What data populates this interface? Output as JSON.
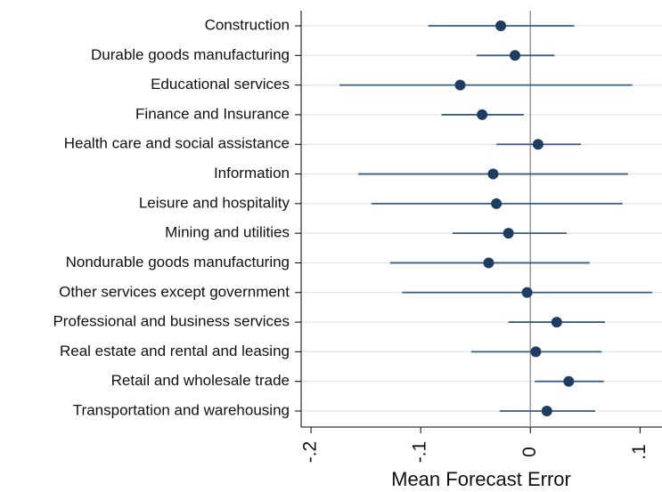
{
  "chart_data": {
    "type": "dot-errorbar",
    "xlabel": "Mean Forecast Error",
    "categories": [
      "Construction",
      "Durable goods manufacturing",
      "Educational services",
      "Finance and Insurance",
      "Health care and social assistance",
      "Information",
      "Leisure and hospitality",
      "Mining and utilities",
      "Nondurable goods manufacturing",
      "Other services except government",
      "Professional and business services",
      "Real estate and rental and leasing",
      "Retail and wholesale trade",
      "Transportation and warehousing"
    ],
    "series": [
      {
        "color": "#1f3d63",
        "bar_color": "#3b5b82",
        "values": [
          -0.027,
          -0.014,
          -0.064,
          -0.044,
          0.007,
          -0.034,
          -0.031,
          -0.02,
          -0.038,
          -0.003,
          0.024,
          0.005,
          0.035,
          0.015
        ],
        "lower": [
          -0.093,
          -0.049,
          -0.174,
          -0.081,
          -0.031,
          -0.157,
          -0.145,
          -0.071,
          -0.128,
          -0.117,
          -0.02,
          -0.054,
          0.004,
          -0.028
        ],
        "upper": [
          0.04,
          0.022,
          0.093,
          -0.006,
          0.046,
          0.089,
          0.084,
          0.033,
          0.054,
          0.111,
          0.068,
          0.065,
          0.067,
          0.059
        ]
      }
    ],
    "xlim": [
      -0.209,
      0.12
    ],
    "xticks": [
      {
        "value": -0.2,
        "label": "-.2"
      },
      {
        "value": -0.1,
        "label": "-.1"
      },
      0,
      {
        "value": 0.1,
        "label": ".1"
      }
    ],
    "xline": 0,
    "grid": true
  }
}
